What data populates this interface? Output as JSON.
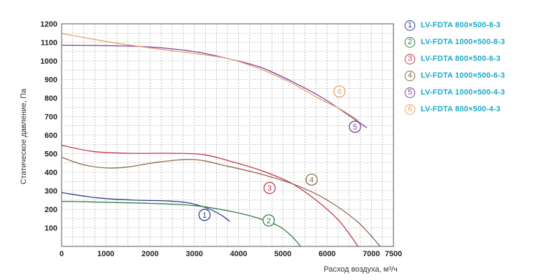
{
  "chart_data": {
    "type": "line",
    "title": "",
    "xlabel": "Расход воздуха, м³/ч",
    "ylabel": "Статическое давление, Па",
    "xlim": [
      0,
      7500
    ],
    "ylim": [
      0,
      1200
    ],
    "grid": true,
    "legend_position": "right",
    "x_ticks": [
      0,
      1000,
      2000,
      3000,
      4000,
      5000,
      6000,
      7000,
      7500
    ],
    "y_ticks": [
      100,
      200,
      300,
      400,
      500,
      600,
      700,
      800,
      900,
      1000,
      1100,
      1200
    ],
    "series": [
      {
        "marker": "1",
        "name": "LV-FDTA 800×500-8-3",
        "color": "#2e3f8a",
        "label_point": [
          3230,
          170
        ],
        "points": [
          [
            0,
            290
          ],
          [
            800,
            262
          ],
          [
            1600,
            250
          ],
          [
            2400,
            245
          ],
          [
            2900,
            233
          ],
          [
            3300,
            205
          ],
          [
            3600,
            170
          ],
          [
            3800,
            135
          ]
        ]
      },
      {
        "marker": "2",
        "name": "LV-FDTA 1000×500-8-3",
        "color": "#2e7d46",
        "label_point": [
          4680,
          140
        ],
        "points": [
          [
            0,
            243
          ],
          [
            1000,
            238
          ],
          [
            2000,
            232
          ],
          [
            3000,
            220
          ],
          [
            3800,
            190
          ],
          [
            4400,
            155
          ],
          [
            4900,
            110
          ],
          [
            5200,
            55
          ],
          [
            5400,
            0
          ]
        ]
      },
      {
        "marker": "3",
        "name": "LV-FDTA 800×500-6-3",
        "color": "#c2384e",
        "label_point": [
          4700,
          315
        ],
        "points": [
          [
            0,
            545
          ],
          [
            700,
            512
          ],
          [
            1500,
            502
          ],
          [
            2500,
            502
          ],
          [
            3200,
            495
          ],
          [
            3800,
            460
          ],
          [
            4500,
            410
          ],
          [
            5200,
            340
          ],
          [
            5800,
            240
          ],
          [
            6300,
            130
          ],
          [
            6700,
            0
          ]
        ]
      },
      {
        "marker": "4",
        "name": "LV-FDTA 1000×500-6-3",
        "color": "#8a6a4a",
        "label_point": [
          5650,
          360
        ],
        "points": [
          [
            0,
            480
          ],
          [
            500,
            440
          ],
          [
            1000,
            423
          ],
          [
            1500,
            428
          ],
          [
            2200,
            455
          ],
          [
            3000,
            468
          ],
          [
            3700,
            435
          ],
          [
            4500,
            390
          ],
          [
            5300,
            330
          ],
          [
            6000,
            250
          ],
          [
            6700,
            130
          ],
          [
            7200,
            0
          ]
        ]
      },
      {
        "marker": "5",
        "name": "LV-FDTA 1000×500-4-3",
        "color": "#7c3f98",
        "label_point": [
          6630,
          645
        ],
        "points": [
          [
            0,
            1085
          ],
          [
            1000,
            1082
          ],
          [
            2000,
            1075
          ],
          [
            3000,
            1050
          ],
          [
            3800,
            1010
          ],
          [
            4500,
            965
          ],
          [
            5200,
            890
          ],
          [
            5900,
            800
          ],
          [
            6500,
            705
          ],
          [
            6900,
            640
          ]
        ]
      },
      {
        "marker": "6",
        "name": "LV-FDTA 800×500-4-3",
        "color": "#e7a16a",
        "label_point": [
          6280,
          835
        ],
        "points": [
          [
            0,
            1148
          ],
          [
            1000,
            1105
          ],
          [
            2000,
            1070
          ],
          [
            3000,
            1040
          ],
          [
            3800,
            1010
          ],
          [
            4500,
            955
          ],
          [
            5200,
            880
          ],
          [
            5800,
            800
          ],
          [
            6300,
            740
          ],
          [
            6700,
            680
          ]
        ]
      }
    ]
  }
}
